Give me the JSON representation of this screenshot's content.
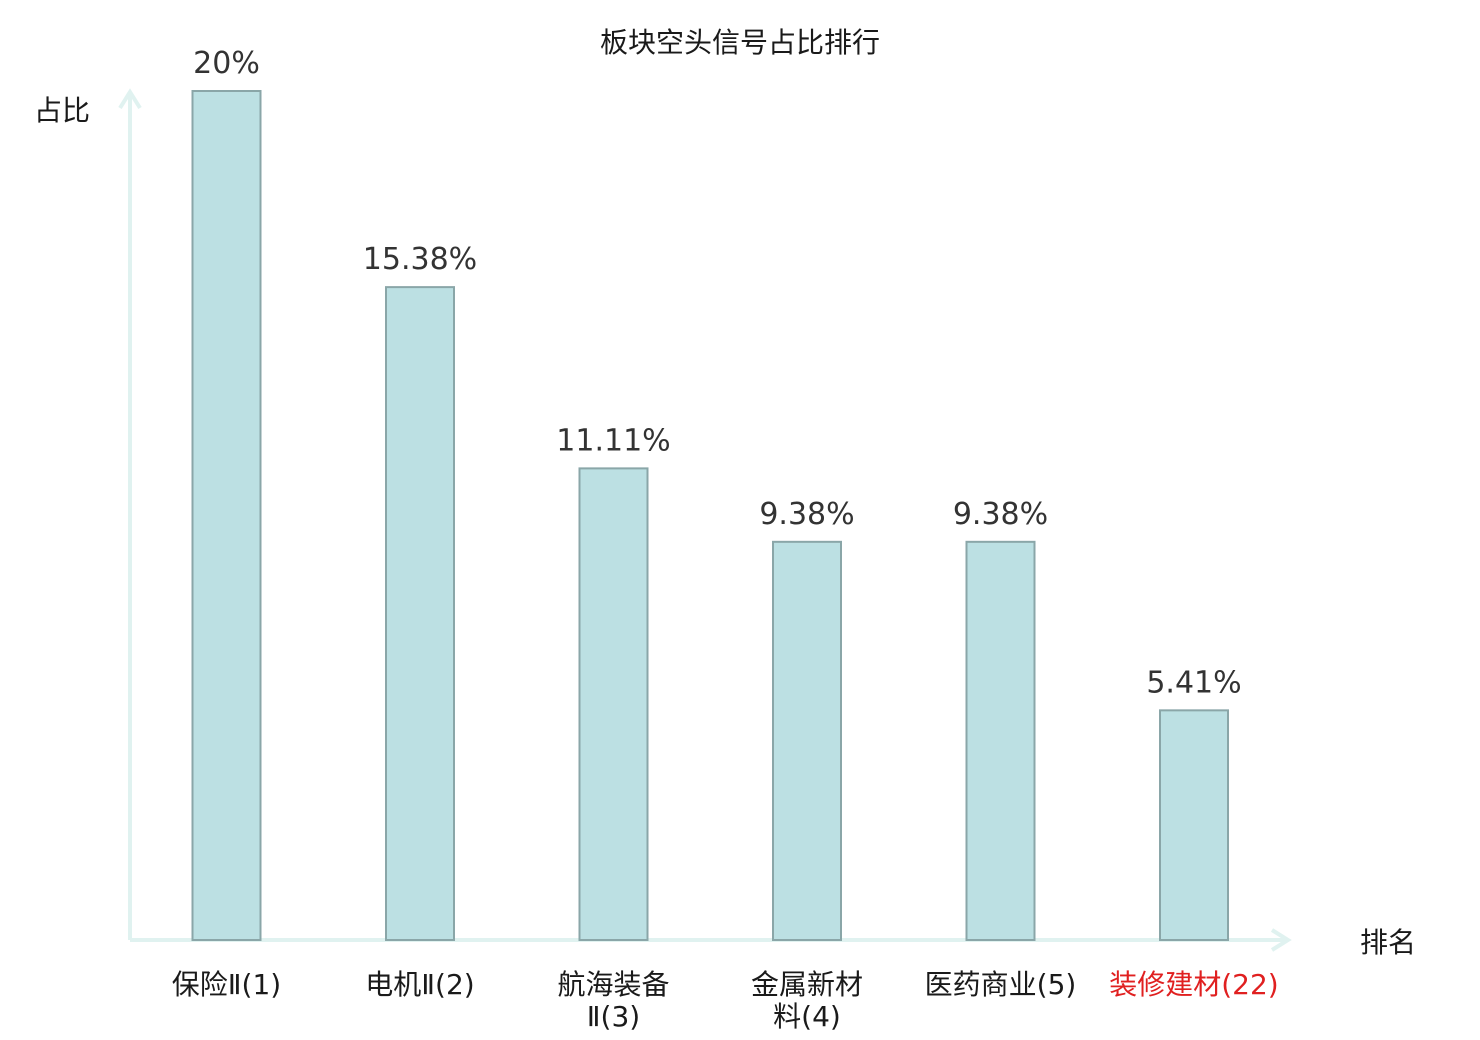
{
  "chart_data": {
    "type": "bar",
    "title": "板块空头信号占比排行",
    "ylabel": "占比",
    "xlabel": "排名",
    "ylim": [
      0,
      20
    ],
    "grid": false,
    "legend": "none",
    "categories": [
      {
        "name": "保险Ⅱ",
        "rank": "(1)",
        "lines": [
          "保险Ⅱ(1)"
        ],
        "highlight": false
      },
      {
        "name": "电机Ⅱ",
        "rank": "(2)",
        "lines": [
          "电机Ⅱ(2)"
        ],
        "highlight": false
      },
      {
        "name": "航海装备Ⅱ",
        "rank": "(3)",
        "lines": [
          "航海装备",
          "Ⅱ(3)"
        ],
        "highlight": false
      },
      {
        "name": "金属新材料",
        "rank": "(4)",
        "lines": [
          "金属新材",
          "料(4)"
        ],
        "highlight": false
      },
      {
        "name": "医药商业",
        "rank": "(5)",
        "lines": [
          "医药商业(5)"
        ],
        "highlight": false
      },
      {
        "name": "装修建材",
        "rank": "(22)",
        "lines": [
          "装修建材(22)"
        ],
        "highlight": true
      }
    ],
    "values": [
      20,
      15.38,
      11.11,
      9.38,
      9.38,
      5.41
    ],
    "value_labels": [
      "20%",
      "15.38%",
      "11.11%",
      "9.38%",
      "9.38%",
      "5.41%"
    ],
    "colors": {
      "bar_fill": "#bce0e3",
      "bar_stroke": "#8aa6a8",
      "axis": "#e0f2f0",
      "label": "#1a1a1a",
      "highlight": "#e02020"
    }
  }
}
